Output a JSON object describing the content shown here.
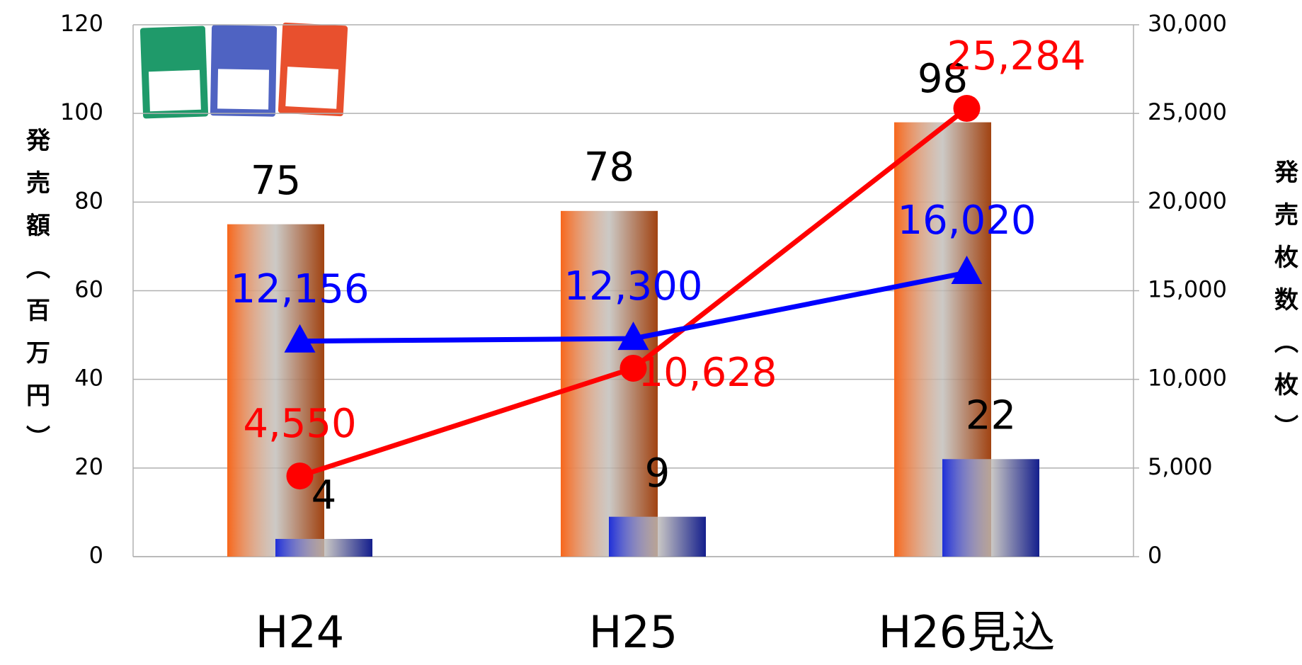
{
  "chart_data": {
    "type": "bar",
    "categories": [
      "H24",
      "H25",
      "H26見込"
    ],
    "ylabel": "発売額（百万円）",
    "y2label": "発売枚数（枚）",
    "ylim": [
      0,
      120
    ],
    "yticks": [
      0,
      20,
      40,
      60,
      80,
      100,
      120
    ],
    "y2lim": [
      0,
      30000
    ],
    "y2ticks": [
      0,
      {
        "value": 5000,
        "label": "5,000"
      },
      {
        "value": 10000,
        "label": "10,000"
      },
      {
        "value": 15000,
        "label": "15,000"
      },
      {
        "value": 20000,
        "label": "20,000"
      },
      {
        "value": 25000,
        "label": "25,000"
      },
      {
        "value": 30000,
        "label": "30,000"
      }
    ],
    "grid": true,
    "series": [
      {
        "type": "bar",
        "color": "#f7661a",
        "values": [
          75,
          78,
          98
        ]
      },
      {
        "type": "bar",
        "color": "#1f2fd8",
        "values": [
          4,
          9,
          22
        ]
      },
      {
        "type": "line",
        "axis": "y2",
        "marker": "circle",
        "color": "#ff0000",
        "values": [
          4550,
          10628,
          25284
        ],
        "value_labels": [
          "4,550",
          "10,628",
          "25,284"
        ]
      },
      {
        "type": "line",
        "axis": "y2",
        "marker": "triangle",
        "color": "#0000ff",
        "values": [
          12156,
          12300,
          16020
        ],
        "value_labels": [
          "12,156",
          "12,300",
          "16,020"
        ]
      }
    ]
  }
}
